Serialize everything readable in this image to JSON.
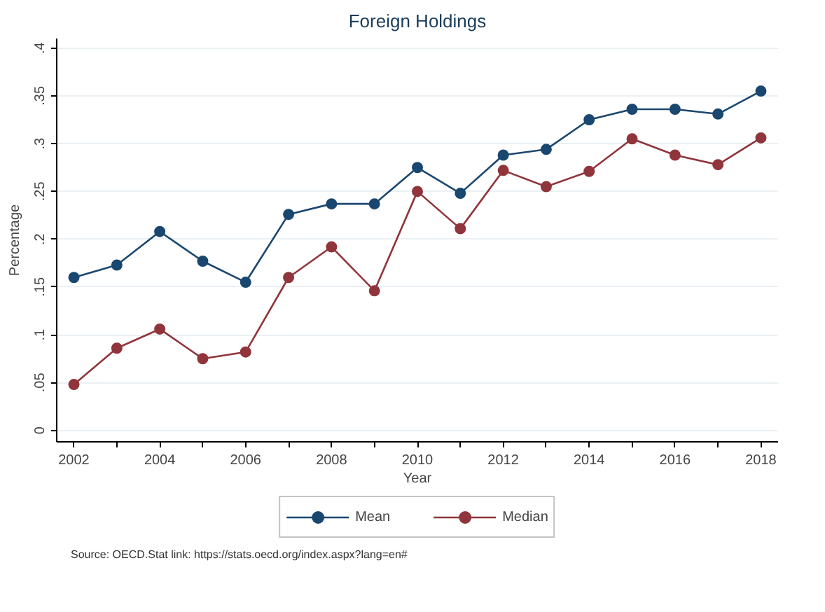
{
  "chart_data": {
    "type": "line",
    "title": "Foreign Holdings",
    "xlabel": "Year",
    "ylabel": "Percentage",
    "x": [
      2002,
      2003,
      2004,
      2005,
      2006,
      2007,
      2008,
      2009,
      2010,
      2011,
      2012,
      2013,
      2014,
      2015,
      2016,
      2017,
      2018
    ],
    "series": [
      {
        "name": "Mean",
        "color": "#1a476f",
        "values": [
          0.16,
          0.173,
          0.208,
          0.177,
          0.155,
          0.226,
          0.237,
          0.237,
          0.275,
          0.248,
          0.288,
          0.294,
          0.325,
          0.336,
          0.336,
          0.331,
          0.355
        ]
      },
      {
        "name": "Median",
        "color": "#90353b",
        "values": [
          0.048,
          0.086,
          0.106,
          0.075,
          0.082,
          0.16,
          0.192,
          0.146,
          0.25,
          0.211,
          0.272,
          0.255,
          0.271,
          0.305,
          0.288,
          0.278,
          0.306
        ]
      }
    ],
    "xlim": [
      2001.6,
      2018.4
    ],
    "xticks": [
      2002,
      {
        "value": 2003,
        "label": null
      },
      2004,
      {
        "value": 2005,
        "label": null
      },
      2006,
      {
        "value": 2007,
        "label": null
      },
      2008,
      {
        "value": 2009,
        "label": null
      },
      2010,
      {
        "value": 2011,
        "label": null
      },
      2012,
      {
        "value": 2013,
        "label": null
      },
      2014,
      {
        "value": 2015,
        "label": null
      },
      2016,
      {
        "value": 2017,
        "label": null
      },
      2018
    ],
    "ylim": [
      -0.012,
      0.41
    ],
    "yticks": [
      0,
      {
        "value": 0.05,
        "label": ".05"
      },
      {
        "value": 0.1,
        "label": ".1"
      },
      {
        "value": 0.15,
        "label": ".15"
      },
      {
        "value": 0.2,
        "label": ".2"
      },
      {
        "value": 0.25,
        "label": ".25"
      },
      {
        "value": 0.3,
        "label": ".3"
      },
      {
        "value": 0.35,
        "label": ".35"
      },
      {
        "value": 0.4,
        "label": ".4"
      }
    ],
    "grid": "y",
    "legend": "bottom",
    "marker": "circle",
    "line_style": "solid",
    "annotations": [
      "Source: OECD.Stat link: https://stats.oecd.org/index.aspx?lang=en#"
    ]
  }
}
